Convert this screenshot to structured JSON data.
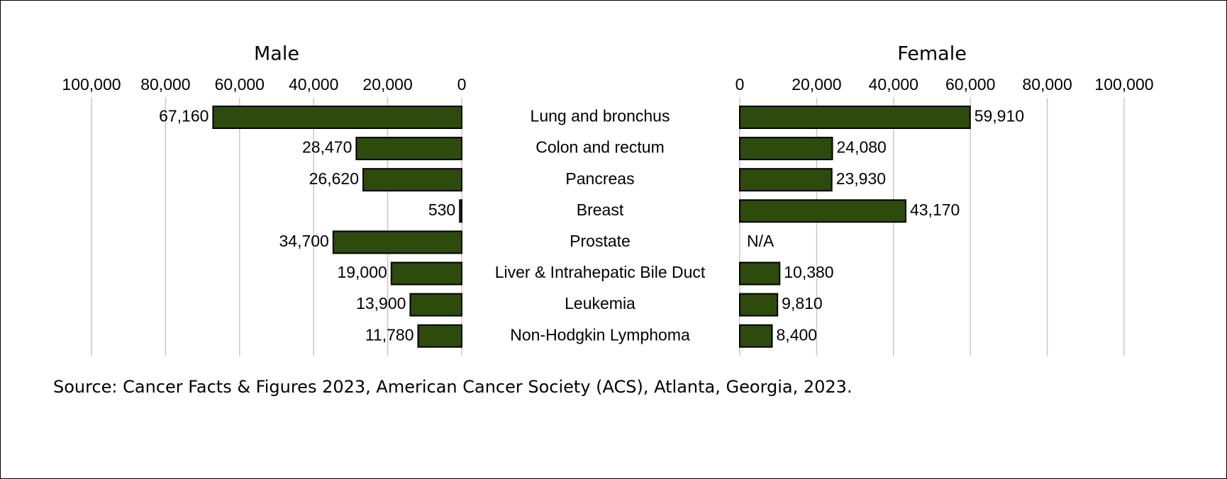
{
  "chart_data": [
    {
      "type": "bar",
      "orientation": "horizontal",
      "x_reversed": true,
      "title": "Male",
      "categories": [
        "Lung and bronchus",
        "Colon and rectum",
        "Pancreas",
        "Breast",
        "Prostate",
        "Liver & Intrahepatic Bile Duct",
        "Leukemia",
        "Non-Hodgkin Lymphoma"
      ],
      "values": [
        67160,
        28470,
        26620,
        530,
        34700,
        19000,
        13900,
        11780
      ],
      "value_labels": [
        "67,160",
        "28,470",
        "26,620",
        "530",
        "34,700",
        "19,000",
        "13,900",
        "11,780"
      ],
      "color": "#2e4a0c",
      "grid": true,
      "xlim": [
        0,
        100000
      ],
      "xticks": [
        0,
        {
          "value": 20000,
          "label": "20,000"
        },
        {
          "value": 40000,
          "label": "40,000"
        },
        {
          "value": 60000,
          "label": "60,000"
        },
        {
          "value": 80000,
          "label": "80,000"
        },
        {
          "value": 100000,
          "label": "100,000"
        }
      ]
    },
    {
      "type": "bar",
      "orientation": "horizontal",
      "x_reversed": false,
      "title": "Female",
      "values": [
        59910,
        24080,
        23930,
        43170,
        null,
        10380,
        9810,
        8400
      ],
      "value_labels": [
        "59,910",
        "24,080",
        "23,930",
        "43,170",
        "N/A",
        "10,380",
        "9,810",
        "8,400"
      ],
      "color": "#2e4a0c",
      "grid": true,
      "xlim": [
        0,
        100000
      ],
      "xticks": [
        0,
        {
          "value": 20000,
          "label": "20,000"
        },
        {
          "value": 40000,
          "label": "40,000"
        },
        {
          "value": 60000,
          "label": "60,000"
        },
        {
          "value": 80000,
          "label": "80,000"
        },
        {
          "value": 100000,
          "label": "100,000"
        }
      ]
    }
  ],
  "source": "Source: Cancer Facts & Figures 2023, American Cancer Society (ACS), Atlanta, Georgia, 2023."
}
